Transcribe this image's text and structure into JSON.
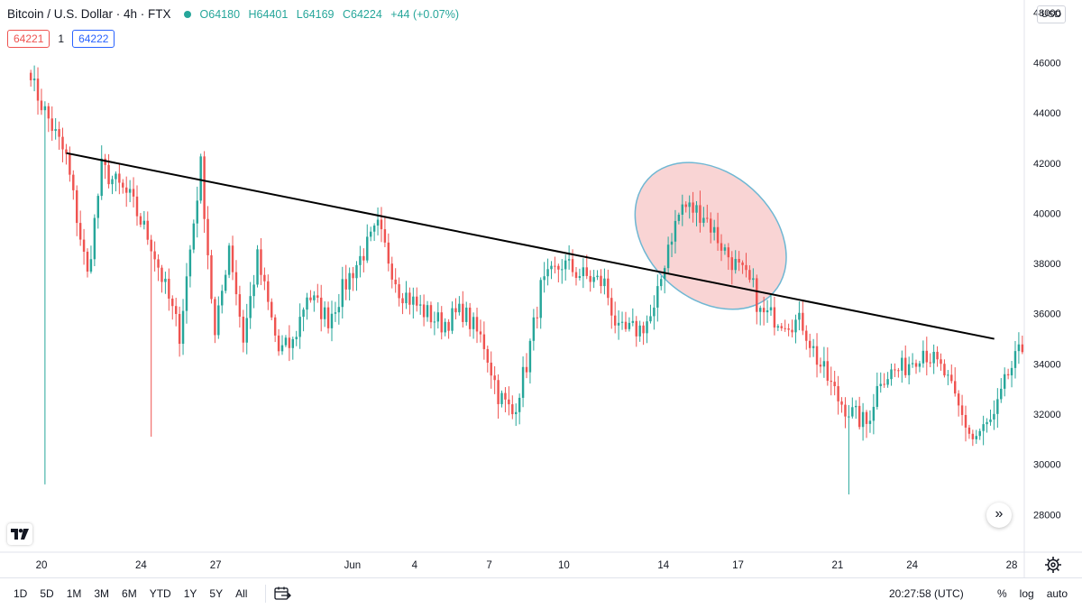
{
  "header": {
    "title": "Bitcoin / U.S. Dollar · 4h · FTX",
    "open": "O64180",
    "high": "H64401",
    "low": "L64169",
    "close": "C64224",
    "change": "+44 (+0.07%)"
  },
  "quote": {
    "sell": "64221",
    "quantity": "1",
    "buy": "64222"
  },
  "currency": "USD",
  "colors": {
    "up": "#26a69a",
    "down": "#ef5350",
    "trendline": "#000000",
    "highlight_fill": "#f8c9c9",
    "highlight_stroke": "#6fb7d3"
  },
  "icons": {
    "logo": "tradingview-logo-icon",
    "scroll": "double-chevron-right-icon",
    "settings": "gear-icon",
    "date_range": "calendar-range-icon"
  },
  "toolbar": {
    "ranges": [
      "1D",
      "5D",
      "1M",
      "3M",
      "6M",
      "YTD",
      "1Y",
      "5Y",
      "All"
    ],
    "time": "20:27:58 (UTC)",
    "percent": "%",
    "log": "log",
    "auto": "auto"
  },
  "chart_data": {
    "type": "candlestick",
    "y_axis": {
      "ylim": [
        26500,
        48500
      ],
      "ticks": [
        48000,
        46000,
        44000,
        42000,
        40000,
        38000,
        36000,
        34000,
        32000,
        30000,
        28000
      ],
      "tick_labels": [
        "48000",
        "46000",
        "44000",
        "42000",
        "40000",
        "38000",
        "36000",
        "34000",
        "32000",
        "30000",
        "28000"
      ]
    },
    "x_axis": {
      "tick_labels": [
        "20",
        "24",
        "27",
        "Jun",
        "4",
        "7",
        "10",
        "14",
        "17",
        "21",
        "24",
        "28"
      ],
      "tick_days": [
        19.5,
        23.5,
        26.5,
        32,
        34.5,
        37.5,
        40.5,
        44.5,
        47.5,
        51.5,
        54.5,
        58.5
      ]
    },
    "candle_days": [
      19,
      59
    ],
    "close_path": [
      [
        0,
        45300
      ],
      [
        10,
        42200
      ],
      [
        16,
        37500
      ],
      [
        20,
        41800
      ],
      [
        28,
        40600
      ],
      [
        34,
        38800
      ],
      [
        42,
        35200
      ],
      [
        48,
        41900
      ],
      [
        52,
        35000
      ],
      [
        56,
        38800
      ],
      [
        60,
        35000
      ],
      [
        64,
        38200
      ],
      [
        70,
        34500
      ],
      [
        74,
        34800
      ],
      [
        78,
        36800
      ],
      [
        84,
        35800
      ],
      [
        90,
        37500
      ],
      [
        98,
        39400
      ],
      [
        104,
        37000
      ],
      [
        110,
        36200
      ],
      [
        116,
        35600
      ],
      [
        122,
        36100
      ],
      [
        128,
        34800
      ],
      [
        132,
        32800
      ],
      [
        136,
        32000
      ],
      [
        140,
        34000
      ],
      [
        144,
        37000
      ],
      [
        150,
        38000
      ],
      [
        156,
        37500
      ],
      [
        162,
        37200
      ],
      [
        166,
        35200
      ],
      [
        172,
        35400
      ],
      [
        176,
        36000
      ],
      [
        180,
        38800
      ],
      [
        184,
        40300
      ],
      [
        190,
        40000
      ],
      [
        196,
        38500
      ],
      [
        204,
        37000
      ],
      [
        206,
        36000
      ],
      [
        212,
        35800
      ],
      [
        218,
        35600
      ],
      [
        222,
        34200
      ],
      [
        228,
        32600
      ],
      [
        232,
        32000
      ],
      [
        236,
        31600
      ],
      [
        240,
        33500
      ],
      [
        246,
        33800
      ],
      [
        252,
        34600
      ],
      [
        258,
        33600
      ],
      [
        262,
        32200
      ],
      [
        266,
        31000
      ],
      [
        272,
        31800
      ],
      [
        276,
        33600
      ],
      [
        280,
        34600
      ]
    ],
    "notable_wicks": [
      {
        "index": 4,
        "low": 29200
      },
      {
        "index": 34,
        "low": 31100
      },
      {
        "index": 231,
        "low": 28800
      }
    ],
    "annotations": [
      {
        "type": "trendline",
        "from": {
          "day": 20.5,
          "price": 42400
        },
        "to": {
          "day": 57.8,
          "price": 35000
        }
      },
      {
        "type": "ellipse",
        "center": {
          "day": 46.4,
          "price": 39100
        },
        "radius_days": 3.4,
        "radius_price": 2500,
        "rotation_deg": 42
      }
    ]
  }
}
